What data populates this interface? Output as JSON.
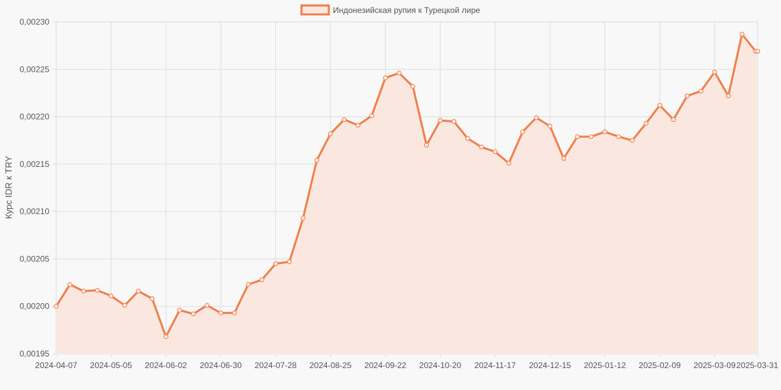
{
  "chart_data": {
    "type": "area",
    "legend_position": "top-center",
    "grid": true,
    "title": "",
    "xlabel": "",
    "ylabel": "Курс IDR к TRY",
    "ylim": [
      0.00195,
      0.0023
    ],
    "y_tick_values": [
      0.00195,
      0.002,
      0.00205,
      0.0021,
      0.00215,
      0.0022,
      0.00225,
      0.0023
    ],
    "y_tick_labels": [
      "0,00195",
      "0,00200",
      "0,00205",
      "0,00210",
      "0,00215",
      "0,00220",
      "0,00225",
      "0,00230"
    ],
    "x_tick_labels": [
      "2024-04-07",
      "2024-05-05",
      "2024-06-02",
      "2024-06-30",
      "2024-07-28",
      "2024-08-25",
      "2024-09-22",
      "2024-10-20",
      "2024-11-17",
      "2024-12-15",
      "2025-01-12",
      "2025-02-09",
      "2025-03-09",
      "2025-03-31"
    ],
    "x": [
      "2024-04-07",
      "2024-04-14",
      "2024-04-21",
      "2024-04-28",
      "2024-05-05",
      "2024-05-12",
      "2024-05-19",
      "2024-05-26",
      "2024-06-02",
      "2024-06-09",
      "2024-06-16",
      "2024-06-23",
      "2024-06-30",
      "2024-07-07",
      "2024-07-14",
      "2024-07-21",
      "2024-07-28",
      "2024-08-04",
      "2024-08-11",
      "2024-08-18",
      "2024-08-25",
      "2024-09-01",
      "2024-09-08",
      "2024-09-15",
      "2024-09-22",
      "2024-09-29",
      "2024-10-06",
      "2024-10-13",
      "2024-10-20",
      "2024-10-27",
      "2024-11-03",
      "2024-11-10",
      "2024-11-17",
      "2024-11-24",
      "2024-12-01",
      "2024-12-08",
      "2024-12-15",
      "2024-12-22",
      "2024-12-29",
      "2025-01-05",
      "2025-01-12",
      "2025-01-19",
      "2025-01-26",
      "2025-02-02",
      "2025-02-09",
      "2025-02-16",
      "2025-02-23",
      "2025-03-02",
      "2025-03-09",
      "2025-03-16",
      "2025-03-23",
      "2025-03-30",
      "2025-03-31"
    ],
    "series": [
      {
        "name": "Индонезийская рупия к Турецкой лире",
        "color": "#f07f4b",
        "fill": "#fae8e0",
        "values": [
          0.002,
          0.002023,
          0.002016,
          0.002017,
          0.002011,
          0.002001,
          0.002016,
          0.002008,
          0.001968,
          0.001996,
          0.001992,
          0.002001,
          0.001993,
          0.001993,
          0.002023,
          0.002028,
          0.002045,
          0.002047,
          0.002093,
          0.002154,
          0.002182,
          0.002197,
          0.002191,
          0.002201,
          0.002241,
          0.002246,
          0.002232,
          0.00217,
          0.002196,
          0.002195,
          0.002177,
          0.002168,
          0.002163,
          0.002151,
          0.002184,
          0.002199,
          0.00219,
          0.002156,
          0.002179,
          0.002179,
          0.002184,
          0.002179,
          0.002175,
          0.002193,
          0.002212,
          0.002197,
          0.002222,
          0.002227,
          0.002247,
          0.002222,
          0.002287,
          0.002269,
          0.002269
        ]
      }
    ]
  }
}
